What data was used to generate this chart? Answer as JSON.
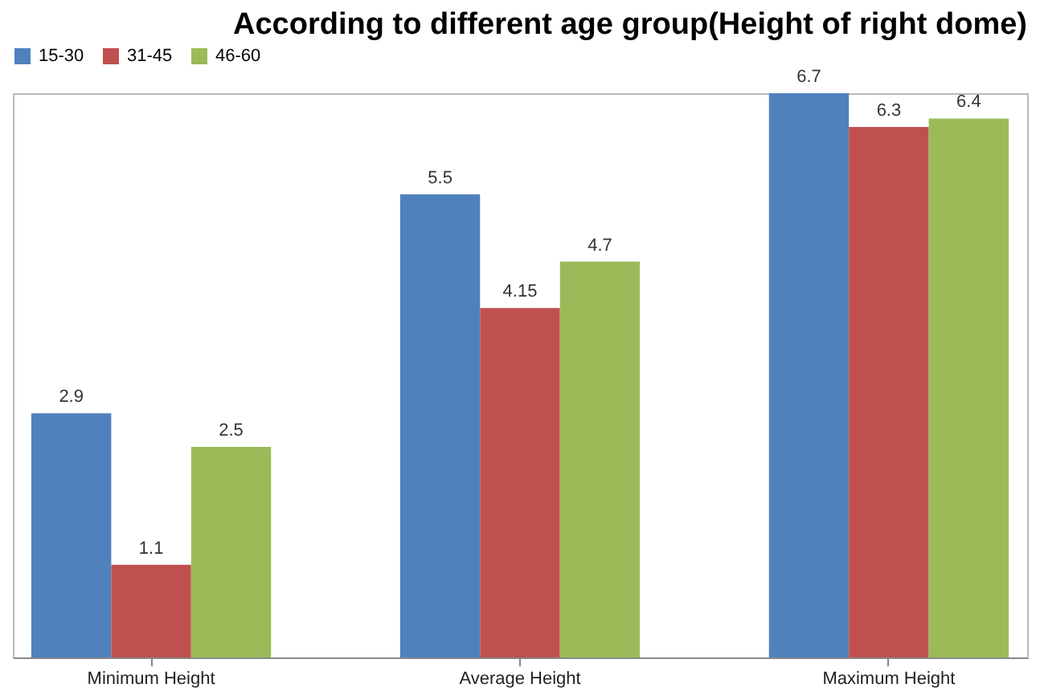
{
  "chart_data": {
    "type": "bar",
    "title": "According to different age group(Height of right dome)",
    "categories": [
      "Minimum Height",
      "Average Height",
      "Maximum Height"
    ],
    "series": [
      {
        "name": "15-30",
        "color": "#4f81bd",
        "values": [
          2.9,
          5.5,
          6.7
        ]
      },
      {
        "name": "31-45",
        "color": "#c0504d",
        "values": [
          1.1,
          4.15,
          6.3
        ]
      },
      {
        "name": "46-60",
        "color": "#9bbb59",
        "values": [
          2.5,
          4.7,
          6.4
        ]
      }
    ],
    "data_labels": true,
    "legend": "top",
    "grid": false
  }
}
